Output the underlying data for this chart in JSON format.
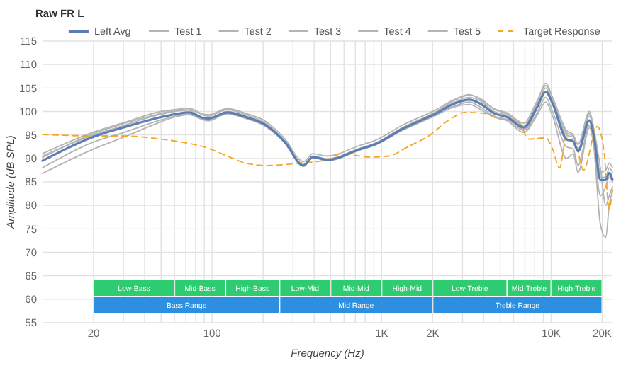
{
  "chart_data": {
    "type": "line",
    "title": "Raw FR L",
    "xlabel": "Frequency (Hz)",
    "ylabel": "Amplitude (dB SPL)",
    "log": "x",
    "grid": true,
    "legend": "top",
    "xlim": [
      10,
      23000
    ],
    "ylim": [
      55,
      115
    ],
    "xticks": [
      20,
      {
        "value": 30,
        "label": null
      },
      {
        "value": 40,
        "label": null
      },
      {
        "value": 50,
        "label": null
      },
      {
        "value": 60,
        "label": null
      },
      {
        "value": 70,
        "label": null
      },
      {
        "value": 80,
        "label": null
      },
      {
        "value": 90,
        "label": null
      },
      100,
      {
        "value": 200,
        "label": null
      },
      {
        "value": 300,
        "label": null
      },
      {
        "value": 400,
        "label": null
      },
      {
        "value": 500,
        "label": null
      },
      {
        "value": 600,
        "label": null
      },
      {
        "value": 700,
        "label": null
      },
      {
        "value": 800,
        "label": null
      },
      {
        "value": 900,
        "label": null
      },
      {
        "value": 1000,
        "label": "1K"
      },
      {
        "value": 2000,
        "label": "2K"
      },
      {
        "value": 3000,
        "label": null
      },
      {
        "value": 4000,
        "label": null
      },
      {
        "value": 5000,
        "label": null
      },
      {
        "value": 6000,
        "label": null
      },
      {
        "value": 7000,
        "label": null
      },
      {
        "value": 8000,
        "label": null
      },
      {
        "value": 9000,
        "label": null
      },
      {
        "value": 10000,
        "label": "10K"
      },
      {
        "value": 20000,
        "label": "20K"
      }
    ],
    "yticks": [
      55,
      60,
      65,
      70,
      75,
      80,
      85,
      90,
      95,
      100,
      105,
      110,
      115
    ],
    "series": [
      {
        "name": "Test 1",
        "color": "#b4b4b4",
        "x": [
          10,
          20,
          30,
          50,
          60,
          73,
          89,
          95,
          123,
          158,
          207,
          267,
          346,
          393,
          478,
          748,
          911,
          1330,
          2100,
          2700,
          3300,
          3800,
          4600,
          5500,
          6900,
          8200,
          9300,
          10200,
          12300,
          13500,
          14400,
          16800,
          17900,
          19500,
          21000,
          22000,
          23000
        ],
        "values": [
          91,
          95.6,
          97.6,
          100,
          100.4,
          100.6,
          99.2,
          99,
          100.4,
          99.3,
          97.5,
          93.8,
          88.7,
          90.5,
          89.9,
          92.2,
          93.2,
          96.6,
          100,
          102.4,
          103.5,
          102.8,
          100.5,
          99.5,
          97,
          101.5,
          106,
          103,
          96,
          95,
          93,
          100,
          96,
          88,
          80,
          82,
          84
        ]
      },
      {
        "name": "Test 2",
        "color": "#b4b4b4",
        "x": [
          10,
          20,
          30,
          50,
          60,
          73,
          89,
          95,
          123,
          158,
          207,
          267,
          346,
          393,
          478,
          748,
          911,
          1330,
          2100,
          2700,
          3300,
          3800,
          4600,
          5500,
          6900,
          8200,
          9300,
          10200,
          12300,
          13500,
          14400,
          16800,
          17900,
          19500,
          21000,
          22000,
          23000
        ],
        "values": [
          90.5,
          95,
          97,
          99.4,
          100,
          100.3,
          98.4,
          98.2,
          100,
          99,
          97.3,
          93.7,
          88.6,
          90.4,
          89.8,
          92.1,
          93.1,
          96.4,
          99.8,
          102,
          103,
          102.3,
          100,
          99.2,
          96.2,
          100.5,
          105,
          102,
          95,
          94.5,
          92,
          99,
          95.5,
          86,
          86,
          88,
          87
        ]
      },
      {
        "name": "Test 3",
        "color": "#b4b4b4",
        "x": [
          10,
          20,
          30,
          50,
          60,
          73,
          89,
          95,
          123,
          158,
          207,
          267,
          346,
          393,
          478,
          748,
          911,
          1330,
          2100,
          2700,
          3300,
          3800,
          4600,
          5500,
          6900,
          8200,
          9300,
          10200,
          12300,
          13500,
          14400,
          16800,
          17900,
          19500,
          21000,
          22000,
          23000
        ],
        "values": [
          90.2,
          95.3,
          97.4,
          99.6,
          100.3,
          100.7,
          99.4,
          99.3,
          100.6,
          99.6,
          97.9,
          94.3,
          89.3,
          91,
          90.5,
          92.8,
          93.8,
          97.1,
          100.4,
          102.6,
          103.6,
          102.6,
          100.6,
          99.7,
          97.5,
          102,
          105.5,
          102.8,
          95.5,
          94.8,
          93,
          99.5,
          96,
          87,
          87.5,
          89,
          88
        ]
      },
      {
        "name": "Test 4",
        "color": "#b4b4b4",
        "x": [
          10,
          20,
          30,
          50,
          60,
          73,
          89,
          95,
          123,
          158,
          207,
          267,
          346,
          393,
          478,
          748,
          911,
          1330,
          2100,
          2700,
          3300,
          3800,
          4600,
          5500,
          6900,
          8200,
          9300,
          10200,
          12300,
          13500,
          14400,
          16800,
          17900,
          19500,
          21000,
          22000,
          23000
        ],
        "values": [
          88,
          93.5,
          95.5,
          98.2,
          99,
          99.4,
          98.2,
          98,
          99.5,
          98.5,
          96.8,
          93.4,
          88.3,
          90.1,
          89.5,
          91.8,
          92.8,
          96,
          99.2,
          101.2,
          102,
          101,
          99,
          98.3,
          96,
          99.5,
          103,
          100,
          92.5,
          92,
          88.5,
          97,
          93,
          82,
          84,
          86,
          85
        ]
      },
      {
        "name": "Test 5",
        "color": "#b4b4b4",
        "x": [
          10,
          20,
          30,
          50,
          60,
          73,
          89,
          95,
          123,
          158,
          207,
          267,
          346,
          393,
          478,
          748,
          911,
          1330,
          2100,
          2700,
          3300,
          3800,
          4600,
          5500,
          6900,
          8200,
          9300,
          10200,
          12300,
          13500,
          14400,
          16800,
          17900,
          19500,
          21000,
          22000,
          23000
        ],
        "values": [
          86.8,
          92,
          94.5,
          97.8,
          98.8,
          99.3,
          98.3,
          98.1,
          99.6,
          98.6,
          96.9,
          93.5,
          88.4,
          90.2,
          89.6,
          91.9,
          92.9,
          96.1,
          99.3,
          101,
          101.5,
          100.5,
          98.8,
          98,
          95.5,
          99,
          102,
          99,
          90,
          91,
          87,
          96.5,
          92,
          76,
          73.2,
          80,
          83
        ]
      },
      {
        "name": "Target Response",
        "color": "#f5a623",
        "line_style": "dashed",
        "x": [
          10,
          20,
          30,
          50,
          73,
          89,
          123,
          158,
          207,
          330,
          478,
          577,
          857,
          1100,
          1430,
          1860,
          2600,
          3100,
          4000,
          5100,
          6300,
          7400,
          9300,
          10200,
          11200,
          12300,
          14000,
          15500,
          18700,
          20500,
          22000,
          23000
        ],
        "values": [
          95.1,
          94.8,
          94.8,
          94.1,
          93.2,
          92.5,
          90.5,
          89,
          88.5,
          89,
          89.7,
          91,
          90.3,
          90.5,
          92.5,
          94.6,
          98.6,
          99.8,
          99.6,
          98.3,
          98.1,
          94.1,
          94.4,
          92,
          88,
          94.6,
          93,
          87.5,
          96.8,
          91.5,
          79.3,
          83.4
        ]
      },
      {
        "name": "Left Avg",
        "color": "#5a7db3",
        "x": [
          10,
          20,
          30,
          50,
          60,
          73,
          89,
          95,
          123,
          158,
          207,
          267,
          346,
          393,
          478,
          748,
          911,
          1330,
          2100,
          2700,
          3300,
          3800,
          4600,
          5500,
          6900,
          8200,
          9300,
          10200,
          12300,
          13500,
          14400,
          16800,
          17900,
          19500,
          21000,
          22000,
          23000
        ],
        "values": [
          89.5,
          94.6,
          96.6,
          98.8,
          99.4,
          99.8,
          98.6,
          98.5,
          99.8,
          98.8,
          97.1,
          93.6,
          88.5,
          90.3,
          89.7,
          92.0,
          93.0,
          96.3,
          99.6,
          101.7,
          102.5,
          101.7,
          99.6,
          98.8,
          96.6,
          100.7,
          104.2,
          101.7,
          94.1,
          93.6,
          91.5,
          98.1,
          94.6,
          85.4,
          85.4,
          86.9,
          85.4
        ]
      }
    ],
    "bands": [
      {
        "axis": "x",
        "from": 20,
        "to": 60,
        "label": "Low-Bass",
        "color": "#2ecc71"
      },
      {
        "axis": "x",
        "from": 60,
        "to": 120,
        "label": "Mid-Bass",
        "color": "#2ecc71"
      },
      {
        "axis": "x",
        "from": 120,
        "to": 250,
        "label": "High-Bass",
        "color": "#2ecc71"
      },
      {
        "axis": "x",
        "from": 250,
        "to": 500,
        "label": "Low-Mid",
        "color": "#2ecc71"
      },
      {
        "axis": "x",
        "from": 500,
        "to": 1000,
        "label": "Mid-Mid",
        "color": "#2ecc71"
      },
      {
        "axis": "x",
        "from": 1000,
        "to": 2000,
        "label": "High-Mid",
        "color": "#2ecc71"
      },
      {
        "axis": "x",
        "from": 2000,
        "to": 5500,
        "label": "Low-Treble",
        "color": "#2ecc71"
      },
      {
        "axis": "x",
        "from": 5500,
        "to": 10000,
        "label": "Mid-Treble",
        "color": "#2ecc71"
      },
      {
        "axis": "x",
        "from": 10000,
        "to": 20000,
        "label": "High-Treble",
        "color": "#2ecc71"
      },
      {
        "axis": "x",
        "from": 20,
        "to": 250,
        "label": "Bass Range",
        "color": "#2d8fe0"
      },
      {
        "axis": "x",
        "from": 250,
        "to": 2000,
        "label": "Mid Range",
        "color": "#2d8fe0"
      },
      {
        "axis": "x",
        "from": 2000,
        "to": 20000,
        "label": "Treble Range",
        "color": "#2d8fe0"
      }
    ]
  }
}
